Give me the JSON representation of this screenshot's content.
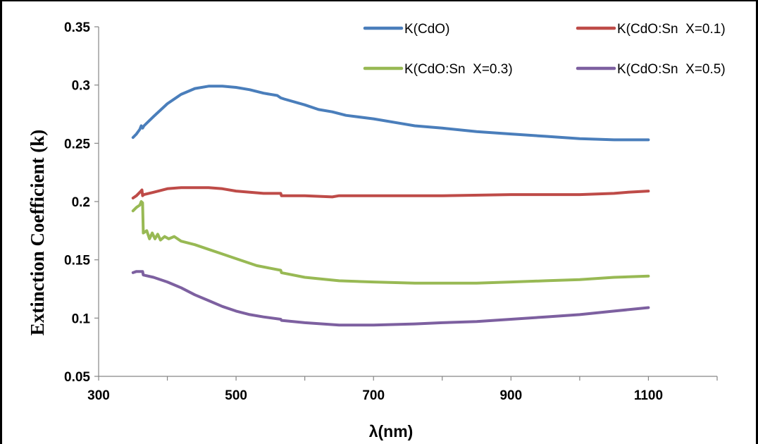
{
  "chart_data": {
    "type": "line",
    "title": "",
    "xlabel": "λ(nm)",
    "ylabel": "Extinction Coefficient (k)",
    "xlim": [
      300,
      1200
    ],
    "ylim": [
      0.05,
      0.35
    ],
    "xticks": [
      300,
      500,
      700,
      900,
      1100
    ],
    "xtick_labels": [
      "300",
      "500",
      "700",
      "900",
      "1100"
    ],
    "yticks": [
      0.05,
      0.1,
      0.15,
      0.2,
      0.25,
      0.3,
      0.35
    ],
    "ytick_labels": [
      "0.05",
      "0.1",
      "0.15",
      "0.2",
      "0.25",
      "0.3",
      "0.35"
    ],
    "grid": false,
    "legend_position": "top-right",
    "series": [
      {
        "name": "K(CdO)",
        "color": "#4a7ebb",
        "x": [
          350,
          355,
          360,
          362,
          364,
          366,
          380,
          400,
          420,
          440,
          460,
          480,
          500,
          520,
          540,
          560,
          565,
          570,
          600,
          620,
          640,
          660,
          700,
          740,
          760,
          800,
          850,
          900,
          950,
          1000,
          1050,
          1100
        ],
        "y": [
          0.255,
          0.258,
          0.262,
          0.265,
          0.263,
          0.265,
          0.273,
          0.284,
          0.292,
          0.297,
          0.299,
          0.299,
          0.298,
          0.296,
          0.293,
          0.291,
          0.289,
          0.288,
          0.283,
          0.279,
          0.277,
          0.274,
          0.271,
          0.267,
          0.265,
          0.263,
          0.26,
          0.258,
          0.256,
          0.254,
          0.253,
          0.253
        ]
      },
      {
        "name": "K(CdO:Sn  X=0.1)",
        "color": "#be4b48",
        "x": [
          350,
          355,
          360,
          363,
          364,
          366,
          380,
          400,
          420,
          440,
          460,
          480,
          500,
          520,
          540,
          565,
          566,
          600,
          640,
          650,
          700,
          760,
          800,
          900,
          1000,
          1050,
          1070,
          1100
        ],
        "y": [
          0.203,
          0.205,
          0.208,
          0.21,
          0.205,
          0.206,
          0.208,
          0.211,
          0.212,
          0.212,
          0.212,
          0.211,
          0.209,
          0.208,
          0.207,
          0.207,
          0.205,
          0.205,
          0.204,
          0.205,
          0.205,
          0.205,
          0.205,
          0.206,
          0.206,
          0.207,
          0.208,
          0.209
        ]
      },
      {
        "name": "K(CdO:Sn  X=0.3)",
        "color": "#98b954",
        "x": [
          350,
          355,
          360,
          362,
          364,
          365,
          370,
          374,
          378,
          382,
          386,
          390,
          396,
          402,
          410,
          420,
          440,
          460,
          480,
          500,
          530,
          565,
          566,
          600,
          650,
          700,
          760,
          800,
          850,
          900,
          950,
          1000,
          1050,
          1100
        ],
        "y": [
          0.192,
          0.195,
          0.197,
          0.2,
          0.199,
          0.173,
          0.175,
          0.168,
          0.173,
          0.168,
          0.172,
          0.167,
          0.17,
          0.168,
          0.17,
          0.166,
          0.163,
          0.159,
          0.155,
          0.151,
          0.145,
          0.141,
          0.139,
          0.135,
          0.132,
          0.131,
          0.13,
          0.13,
          0.13,
          0.131,
          0.132,
          0.133,
          0.135,
          0.136
        ]
      },
      {
        "name": "K(CdO:Sn  X=0.5)",
        "color": "#7d60a0",
        "x": [
          350,
          355,
          360,
          364,
          365,
          380,
          400,
          420,
          440,
          460,
          480,
          500,
          520,
          540,
          565,
          566,
          600,
          650,
          700,
          760,
          800,
          850,
          900,
          950,
          1000,
          1050,
          1100
        ],
        "y": [
          0.139,
          0.14,
          0.14,
          0.14,
          0.137,
          0.135,
          0.131,
          0.126,
          0.12,
          0.115,
          0.11,
          0.106,
          0.103,
          0.101,
          0.099,
          0.098,
          0.096,
          0.094,
          0.094,
          0.095,
          0.096,
          0.097,
          0.099,
          0.101,
          0.103,
          0.106,
          0.109
        ]
      }
    ]
  }
}
